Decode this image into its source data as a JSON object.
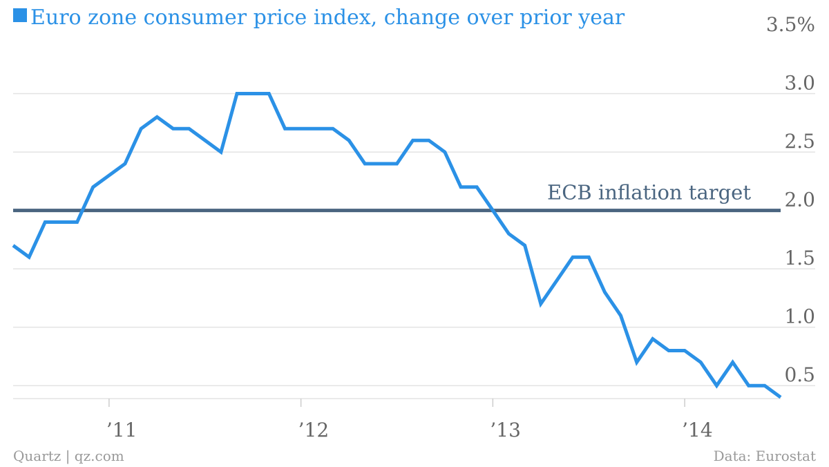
{
  "chart_data": {
    "type": "line",
    "title": "Euro zone consumer price index, change over prior year",
    "xlabel": "",
    "ylabel": "",
    "x_tick_labels": [
      "’11",
      "’12",
      "’13",
      "’14"
    ],
    "x_tick_dates": [
      "2011-01",
      "2012-01",
      "2013-01",
      "2014-01"
    ],
    "y_tick_labels": [
      "3.5%",
      "3.0",
      "2.5",
      "2.0",
      "1.5",
      "1.0",
      "0.5"
    ],
    "y_tick_values": [
      3.5,
      3.0,
      2.5,
      2.0,
      1.5,
      1.0,
      0.5
    ],
    "ylim": [
      0.3,
      3.5
    ],
    "xlim": [
      "2010-07",
      "2014-07"
    ],
    "grid": true,
    "legend": "title-marker",
    "series": [
      {
        "x": [
          "2010-07",
          "2010-08",
          "2010-09",
          "2010-10",
          "2010-11",
          "2010-12",
          "2011-01",
          "2011-02",
          "2011-03",
          "2011-04",
          "2011-05",
          "2011-06",
          "2011-07",
          "2011-08",
          "2011-09",
          "2011-10",
          "2011-11",
          "2011-12",
          "2012-01",
          "2012-02",
          "2012-03",
          "2012-04",
          "2012-05",
          "2012-06",
          "2012-07",
          "2012-08",
          "2012-09",
          "2012-10",
          "2012-11",
          "2012-12",
          "2013-01",
          "2013-02",
          "2013-03",
          "2013-04",
          "2013-05",
          "2013-06",
          "2013-07",
          "2013-08",
          "2013-09",
          "2013-10",
          "2013-11",
          "2013-12",
          "2014-01",
          "2014-02",
          "2014-03",
          "2014-04",
          "2014-05",
          "2014-06",
          "2014-07"
        ],
        "values": [
          1.7,
          1.6,
          1.9,
          1.9,
          1.9,
          2.2,
          2.3,
          2.4,
          2.7,
          2.8,
          2.7,
          2.7,
          2.6,
          2.5,
          3.0,
          3.0,
          3.0,
          2.7,
          2.7,
          2.7,
          2.7,
          2.6,
          2.4,
          2.4,
          2.4,
          2.6,
          2.6,
          2.5,
          2.2,
          2.2,
          2.0,
          1.8,
          1.7,
          1.2,
          1.4,
          1.6,
          1.6,
          1.3,
          1.1,
          0.7,
          0.9,
          0.8,
          0.8,
          0.7,
          0.5,
          0.7,
          0.5,
          0.5,
          0.4
        ]
      }
    ],
    "reference_line": {
      "value": 2.0,
      "label": "ECB inflation target"
    }
  },
  "footer": {
    "source_left": "Quartz | qz.com",
    "source_right": "Data: Eurostat"
  },
  "colors": {
    "series": "#2b91e6",
    "reference": "#4a6580",
    "grid": "#e3e3e3",
    "ticks": "#666666",
    "footer": "#999999"
  }
}
